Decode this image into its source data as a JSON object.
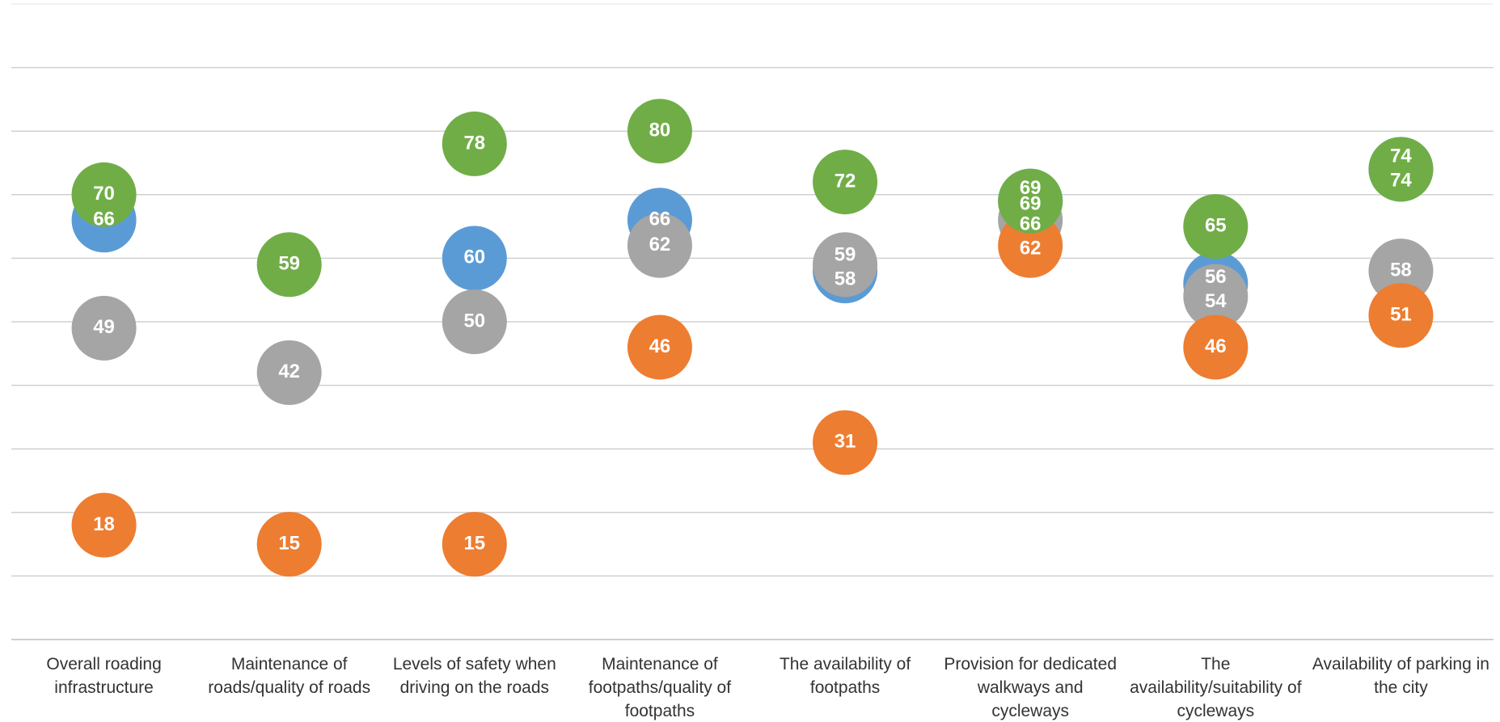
{
  "chart_data": {
    "type": "dot",
    "categories": [
      "Overall roading infrastructure",
      "Maintenance of roads/quality of roads",
      "Levels of safety when driving on the roads",
      "Maintenance of footpaths/quality of footpaths",
      "The availability of footpaths",
      "Provision for dedicated walkways and cycleways",
      "The availability/suitability of cycleways",
      "Availability of parking in the city"
    ],
    "series": [
      {
        "color": "#5b9bd5",
        "values": [
          66,
          null,
          60,
          66,
          58,
          69,
          56,
          74
        ]
      },
      {
        "color": "#a5a5a5",
        "values": [
          49,
          42,
          50,
          62,
          59,
          66,
          54,
          58
        ]
      },
      {
        "color": "#ed7d31",
        "values": [
          18,
          15,
          15,
          46,
          31,
          62,
          46,
          51
        ]
      },
      {
        "color": "#70ad47",
        "values": [
          70,
          59,
          78,
          80,
          72,
          69,
          65,
          74
        ]
      }
    ],
    "ylim": [
      0,
      100
    ],
    "yticks": [
      0,
      10,
      20,
      30,
      40,
      50,
      60,
      70,
      80,
      90,
      100
    ],
    "grid": true
  }
}
